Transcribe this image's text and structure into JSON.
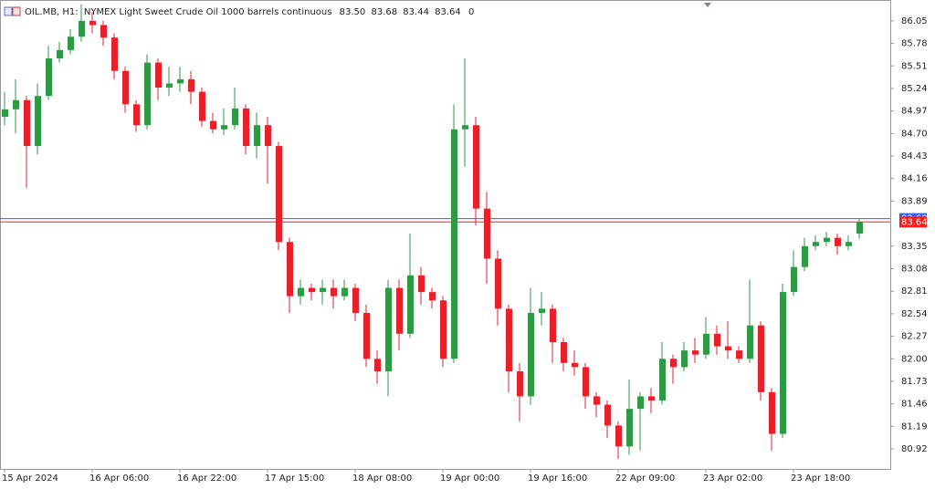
{
  "chart_data": {
    "type": "candlestick",
    "symbol": "OIL.MB, H1:",
    "title": "NYMEX Light Sweet Crude Oil 1000 barrels continuous",
    "header_ohlc": [
      {
        "value": 83.5,
        "label": "83.50"
      },
      83.68,
      83.44,
      83.64
    ],
    "volume": 0,
    "categories": [
      "15 Apr 2024",
      null,
      null,
      null,
      null,
      null,
      null,
      null,
      "16 Apr 06:00",
      null,
      null,
      null,
      null,
      null,
      null,
      null,
      "16 Apr 22:00",
      null,
      null,
      null,
      null,
      null,
      null,
      null,
      "17 Apr 15:00",
      null,
      null,
      null,
      null,
      null,
      null,
      null,
      "18 Apr 08:00",
      null,
      null,
      null,
      null,
      null,
      null,
      null,
      "19 Apr 00:00",
      null,
      null,
      null,
      null,
      null,
      null,
      null,
      "19 Apr 16:00",
      null,
      null,
      null,
      null,
      null,
      null,
      null,
      "22 Apr 09:00",
      null,
      null,
      null,
      null,
      null,
      null,
      null,
      "23 Apr 02:00",
      null,
      null,
      null,
      null,
      null,
      null,
      null,
      "23 Apr 18:00",
      null,
      null,
      null,
      null,
      null,
      null
    ],
    "open": [
      84.9,
      84.99,
      85.1,
      84.55,
      85.15,
      85.6,
      85.7,
      85.86,
      86.05,
      86.0,
      85.85,
      85.45,
      85.05,
      84.8,
      85.55,
      85.25,
      85.3,
      85.35,
      85.2,
      84.85,
      84.75,
      84.8,
      85.0,
      84.55,
      84.8,
      84.55,
      83.4,
      82.75,
      82.85,
      82.8,
      82.85,
      82.75,
      82.85,
      82.55,
      82.0,
      81.85,
      82.85,
      82.3,
      83.0,
      82.8,
      82.7,
      82.0,
      84.75,
      84.8,
      83.8,
      83.2,
      82.6,
      81.85,
      81.55,
      82.55,
      82.6,
      82.2,
      81.95,
      81.9,
      81.55,
      81.45,
      81.2,
      80.95,
      81.4,
      81.55,
      81.5,
      82.0,
      81.9,
      82.1,
      82.05,
      82.3,
      82.15,
      82.1,
      82.0,
      82.4,
      81.6,
      81.1,
      82.8,
      83.1,
      83.35,
      83.4,
      83.45,
      83.35,
      83.5
    ],
    "high": [
      85.2,
      85.35,
      85.15,
      85.3,
      85.75,
      85.8,
      85.95,
      86.25,
      86.15,
      86.05,
      85.9,
      85.5,
      85.1,
      85.65,
      85.6,
      85.5,
      85.5,
      85.45,
      85.25,
      84.95,
      85.0,
      85.25,
      85.05,
      84.95,
      84.9,
      84.6,
      83.45,
      82.95,
      82.9,
      82.95,
      82.95,
      82.95,
      82.9,
      82.65,
      82.1,
      82.95,
      82.95,
      83.5,
      83.1,
      82.85,
      82.75,
      85.05,
      85.6,
      84.9,
      84.0,
      83.3,
      82.65,
      81.95,
      82.85,
      82.8,
      82.65,
      82.25,
      82.1,
      81.95,
      81.6,
      81.5,
      81.25,
      81.75,
      81.6,
      81.65,
      82.2,
      82.05,
      82.2,
      82.25,
      82.5,
      82.4,
      82.45,
      82.15,
      82.95,
      82.45,
      81.65,
      82.9,
      83.3,
      83.45,
      83.48,
      83.52,
      83.5,
      83.48,
      83.68
    ],
    "low": [
      84.8,
      84.7,
      84.05,
      84.45,
      85.1,
      85.55,
      85.65,
      85.8,
      85.9,
      85.75,
      85.35,
      84.95,
      84.72,
      84.75,
      85.1,
      85.15,
      85.2,
      85.05,
      84.78,
      84.7,
      84.68,
      84.75,
      84.45,
      84.4,
      84.1,
      83.3,
      82.55,
      82.65,
      82.7,
      82.65,
      82.6,
      82.7,
      82.45,
      81.9,
      81.7,
      81.55,
      82.1,
      82.25,
      82.65,
      82.6,
      81.9,
      81.95,
      84.3,
      83.6,
      82.9,
      82.4,
      81.6,
      81.25,
      81.45,
      82.4,
      81.95,
      81.85,
      81.8,
      81.4,
      81.3,
      81.05,
      80.8,
      80.85,
      80.9,
      81.35,
      81.45,
      81.7,
      81.85,
      81.95,
      82.0,
      82.05,
      82.0,
      81.95,
      81.95,
      81.5,
      80.9,
      81.05,
      82.75,
      83.05,
      83.3,
      83.35,
      83.25,
      83.3,
      83.44
    ],
    "close": [
      84.99,
      85.1,
      84.55,
      85.15,
      85.6,
      85.7,
      85.86,
      86.05,
      86.0,
      85.85,
      85.45,
      85.05,
      84.8,
      85.55,
      85.25,
      85.3,
      85.35,
      85.2,
      84.85,
      84.75,
      84.8,
      85.0,
      84.55,
      84.8,
      84.55,
      83.4,
      82.75,
      82.85,
      82.8,
      82.85,
      82.75,
      82.85,
      82.55,
      82.0,
      81.85,
      82.85,
      82.3,
      83.0,
      82.8,
      82.7,
      82.0,
      84.75,
      84.8,
      83.8,
      83.2,
      82.6,
      81.85,
      81.55,
      82.55,
      82.6,
      82.2,
      81.95,
      81.9,
      81.55,
      81.45,
      81.2,
      80.95,
      81.4,
      81.55,
      81.5,
      82.0,
      81.9,
      82.1,
      82.05,
      82.3,
      82.15,
      82.1,
      82.0,
      82.4,
      81.6,
      81.1,
      82.8,
      83.1,
      83.35,
      83.4,
      83.45,
      83.35,
      83.4,
      83.64
    ],
    "up_color": "#2e9a45",
    "down_color": "#e8202a",
    "ylim": [
      80.68,
      86.3
    ],
    "yticks": [
      86.05,
      85.78,
      85.51,
      85.24,
      84.97,
      {
        "value": 84.7,
        "label": "84.70"
      },
      84.43,
      84.16,
      83.89,
      83.35,
      83.08,
      82.81,
      82.54,
      82.27,
      {
        "value": 82,
        "label": "82.00"
      },
      81.73,
      81.46,
      81.19,
      80.92
    ],
    "ask_price": 83.68,
    "ask_color": "#3a5cff",
    "bid_price": 83.64,
    "bid_color": "#ff1a1a"
  }
}
